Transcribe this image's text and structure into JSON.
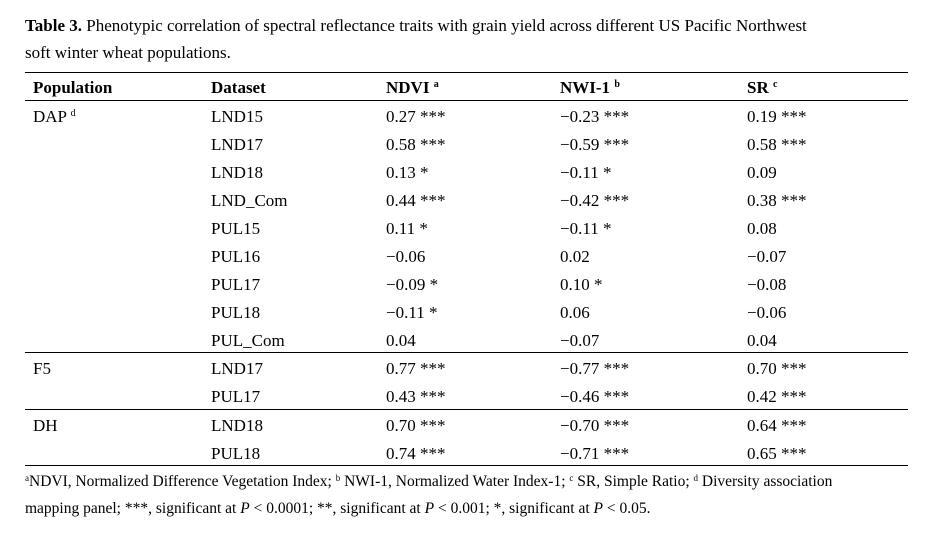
{
  "caption": {
    "label": "Table 3.",
    "line1": " Phenotypic correlation of spectral reflectance traits with grain yield across different US Pacific Northwest",
    "line2": "soft winter wheat populations."
  },
  "headers": {
    "population": "Population",
    "dataset": "Dataset",
    "ndvi": "NDVI",
    "ndvi_sup": "a",
    "nwi": "NWI-1",
    "nwi_sup": "b",
    "sr": "SR",
    "sr_sup": "c"
  },
  "groups": [
    {
      "population": "DAP",
      "population_sup": "d",
      "rows": [
        {
          "dataset": "LND15",
          "ndvi": "0.27 ***",
          "nwi": "−0.23 ***",
          "sr": "0.19 ***"
        },
        {
          "dataset": "LND17",
          "ndvi": "0.58 ***",
          "nwi": "−0.59 ***",
          "sr": "0.58 ***"
        },
        {
          "dataset": "LND18",
          "ndvi": "0.13 *",
          "nwi": "−0.11 *",
          "sr": "0.09"
        },
        {
          "dataset": "LND_Com",
          "ndvi": "0.44 ***",
          "nwi": "−0.42 ***",
          "sr": "0.38 ***"
        },
        {
          "dataset": "PUL15",
          "ndvi": "0.11 *",
          "nwi": "−0.11 *",
          "sr": "0.08"
        },
        {
          "dataset": "PUL16",
          "ndvi": "−0.06",
          "nwi": "0.02",
          "sr": "−0.07"
        },
        {
          "dataset": "PUL17",
          "ndvi": "−0.09 *",
          "nwi": "0.10 *",
          "sr": "−0.08"
        },
        {
          "dataset": "PUL18",
          "ndvi": "−0.11 *",
          "nwi": "0.06",
          "sr": "−0.06"
        },
        {
          "dataset": "PUL_Com",
          "ndvi": "0.04",
          "nwi": "−0.07",
          "sr": "0.04"
        }
      ]
    },
    {
      "population": "F5",
      "population_sup": "",
      "rows": [
        {
          "dataset": "LND17",
          "ndvi": "0.77 ***",
          "nwi": "−0.77 ***",
          "sr": "0.70 ***"
        },
        {
          "dataset": "PUL17",
          "ndvi": "0.43 ***",
          "nwi": "−0.46 ***",
          "sr": "0.42 ***"
        }
      ]
    },
    {
      "population": "DH",
      "population_sup": "",
      "rows": [
        {
          "dataset": "LND18",
          "ndvi": "0.70 ***",
          "nwi": "−0.70 ***",
          "sr": "0.64 ***"
        },
        {
          "dataset": "PUL18",
          "ndvi": "0.74 ***",
          "nwi": "−0.71 ***",
          "sr": "0.65 ***"
        }
      ]
    }
  ],
  "footnote": {
    "a_sup": "a",
    "a_text": "NDVI, Normalized Difference Vegetation Index; ",
    "b_sup": "b",
    "b_text": " NWI-1, Normalized Water Index-1; ",
    "c_sup": "c",
    "c_text": " SR, Simple Ratio; ",
    "d_sup": "d",
    "d_text": " Diversity association",
    "line2_a": "mapping panel; ***, significant at ",
    "p1": "P",
    "line2_b": " < 0.0001; **, significant at ",
    "p2": "P",
    "line2_c": " < 0.001; *, significant at ",
    "p3": "P",
    "line2_d": " < 0.05."
  }
}
